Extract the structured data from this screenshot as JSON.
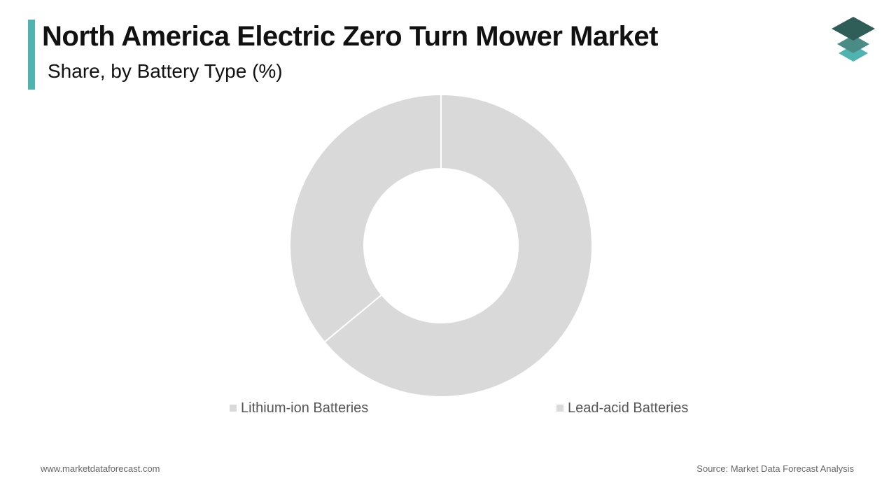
{
  "header": {
    "title": "North America Electric Zero Turn Mower Market",
    "subtitle": "Share, by Battery Type  (%)"
  },
  "colors": {
    "accent": "#4fb3b0",
    "logo_dark": "#2f5d58",
    "logo_mid": "#4a8c85",
    "logo_light": "#4fb3b0",
    "slice_fill": "#d9d9d9",
    "slice_stroke": "#ffffff"
  },
  "logo": {
    "icon": "stacked-layers-icon"
  },
  "chart_data": {
    "type": "pie",
    "donut": true,
    "categories": [
      "Lithium-ion Batteries",
      "Lead-acid Batteries"
    ],
    "values": [
      64,
      36
    ],
    "legend_position": "bottom"
  },
  "footer": {
    "website": "www.marketdataforecast.com",
    "source": "Source: Market Data Forecast Analysis"
  }
}
